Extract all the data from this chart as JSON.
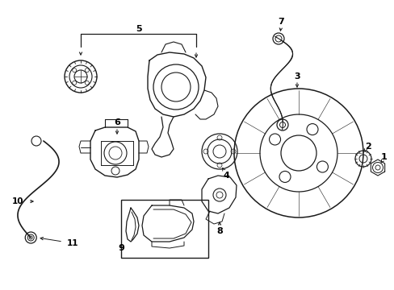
{
  "background_color": "#ffffff",
  "line_color": "#1a1a1a",
  "label_color": "#000000",
  "fig_width": 4.89,
  "fig_height": 3.6,
  "dpi": 100,
  "xlim": [
    0,
    489
  ],
  "ylim": [
    0,
    360
  ]
}
